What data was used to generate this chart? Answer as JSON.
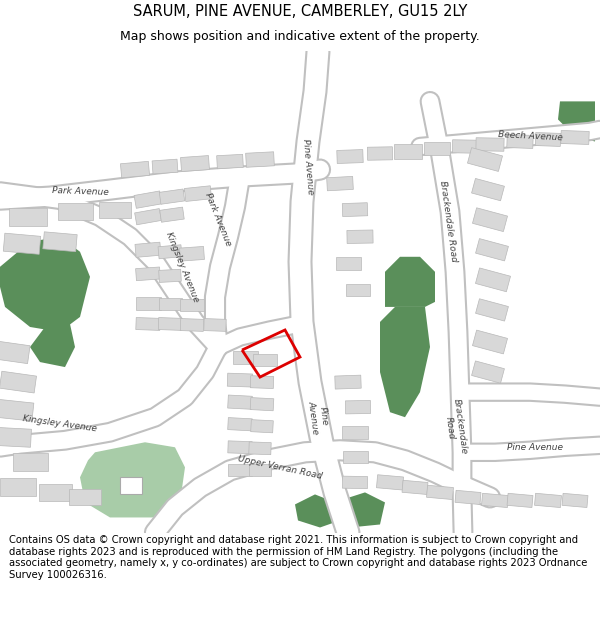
{
  "title": "SARUM, PINE AVENUE, CAMBERLEY, GU15 2LY",
  "subtitle": "Map shows position and indicative extent of the property.",
  "footer": "Contains OS data © Crown copyright and database right 2021. This information is subject to Crown copyright and database rights 2023 and is reproduced with the permission of HM Land Registry. The polygons (including the associated geometry, namely x, y co-ordinates) are subject to Crown copyright and database rights 2023 Ordnance Survey 100026316.",
  "bg_color": "#ffffff",
  "map_bg": "#f2f2f2",
  "road_color": "#ffffff",
  "road_edge_color": "#c0c0c0",
  "building_color": "#d8d8d8",
  "building_edge": "#b8b8b8",
  "green_dark": "#5a8f5a",
  "green_light": "#a8cca8",
  "plot_color": "#dd0000",
  "title_fontsize": 10.5,
  "subtitle_fontsize": 9,
  "footer_fontsize": 7.2,
  "label_fontsize": 6.5
}
